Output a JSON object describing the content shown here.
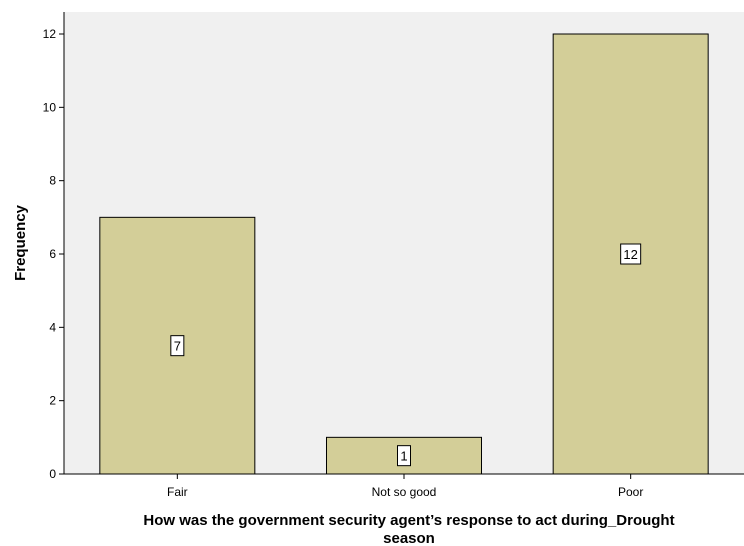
{
  "chart_data": {
    "type": "bar",
    "categories": [
      "Fair",
      "Not so good",
      "Poor"
    ],
    "values": [
      7,
      1,
      12
    ],
    "data_labels": [
      "7",
      "1",
      "12"
    ],
    "xlabel_lines": [
      "How was the government security agent’s response to act during_Drought",
      "season"
    ],
    "ylabel": "Frequency",
    "ylim": [
      0,
      12.6
    ],
    "yticks": [
      0,
      2,
      4,
      6,
      8,
      10,
      12
    ],
    "grid": false,
    "colors": {
      "bar_fill": "#D3CE98",
      "bar_stroke": "#000000",
      "plot_background": "#F0F0F0"
    }
  }
}
